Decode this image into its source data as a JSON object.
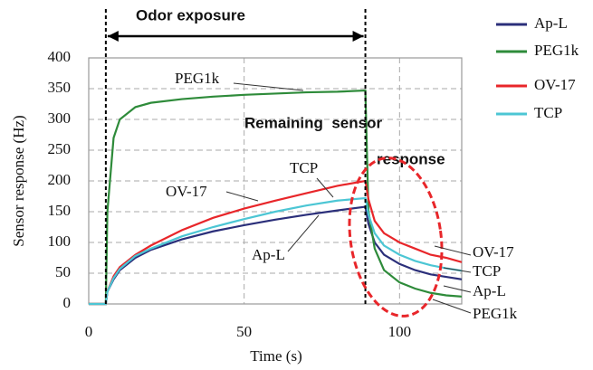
{
  "chart_data": {
    "type": "line",
    "title_annotation": "Odor exposure",
    "remark_lines": [
      "Remaining  sensor",
      "response"
    ],
    "xlabel": "Time (s)",
    "ylabel": "Sensor response (Hz)",
    "x": [
      0,
      5.5,
      6,
      8,
      10,
      15,
      20,
      30,
      40,
      50,
      60,
      70,
      80,
      89,
      90,
      92,
      95,
      100,
      105,
      110,
      115,
      120
    ],
    "series": [
      {
        "name": "Ap-L",
        "color": "#2b2f7a",
        "values": [
          0,
          0,
          20,
          40,
          55,
          75,
          88,
          105,
          118,
          128,
          137,
          145,
          152,
          158,
          130,
          100,
          80,
          65,
          55,
          48,
          44,
          40
        ]
      },
      {
        "name": "PEG1k",
        "color": "#2e8b3a",
        "values": [
          0,
          0,
          150,
          270,
          300,
          320,
          327,
          333,
          337,
          340,
          342,
          344,
          345,
          347,
          150,
          90,
          55,
          35,
          25,
          18,
          14,
          12
        ]
      },
      {
        "name": "OV-17",
        "color": "#e8262a",
        "values": [
          0,
          0,
          20,
          45,
          60,
          80,
          95,
          120,
          140,
          155,
          168,
          180,
          192,
          200,
          170,
          135,
          115,
          100,
          90,
          80,
          75,
          68
        ]
      },
      {
        "name": "TCP",
        "color": "#4cc6d4",
        "values": [
          0,
          0,
          20,
          42,
          57,
          78,
          90,
          110,
          125,
          138,
          150,
          160,
          168,
          172,
          145,
          115,
          95,
          80,
          70,
          63,
          58,
          54
        ]
      }
    ],
    "line_labels": [
      "PEG1k",
      "TCP",
      "OV-17",
      "Ap-L",
      "OV-17",
      "TCP",
      "Ap-L",
      "PEG1k"
    ],
    "exposure_window": [
      5.5,
      89
    ],
    "xlim": [
      0,
      120
    ],
    "xticks": [
      0,
      50,
      100
    ],
    "ylim": [
      0,
      400
    ],
    "yticks": [
      0,
      50,
      100,
      150,
      200,
      250,
      300,
      350,
      400
    ],
    "grid": true,
    "legend": "right"
  }
}
